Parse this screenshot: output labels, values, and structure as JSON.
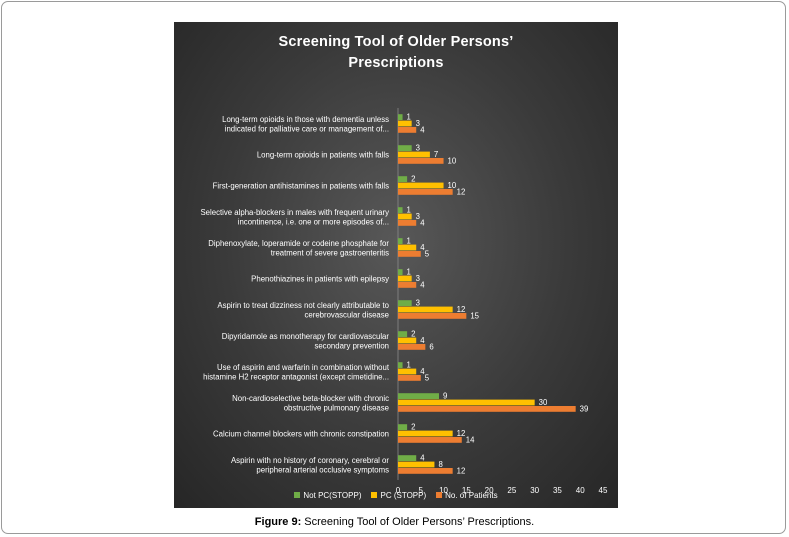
{
  "caption": {
    "label": "Figure 9:",
    "text": " Screening Tool of Older Persons’ Prescriptions."
  },
  "colors": {
    "not_pc": "#70ad47",
    "pc": "#ffc000",
    "patients": "#ed7d31",
    "background": "#3a3a3a"
  },
  "chart_data": {
    "type": "bar",
    "orientation": "horizontal",
    "title_lines": [
      "Screening Tool of Older Persons’",
      "Prescriptions"
    ],
    "categories": [
      [
        "Long-term opioids in those with dementia unless",
        "indicated for palliative care or management of..."
      ],
      [
        "Long-term opioids in patients with falls"
      ],
      [
        "First-generation antihistamines in patients with falls"
      ],
      [
        "Selective alpha-blockers in males with frequent urinary",
        "incontinence, i.e. one or more episodes of..."
      ],
      [
        "Diphenoxylate, loperamide or codeine phosphate for",
        "treatment of severe gastroenteritis"
      ],
      [
        "Phenothiazines in patients with epilepsy"
      ],
      [
        "Aspirin to treat dizziness not clearly attributable to",
        "cerebrovascular disease"
      ],
      [
        "Dipyridamole as monotherapy for cardiovascular",
        "secondary prevention"
      ],
      [
        "Use of aspirin and warfarin in combination without",
        "histamine H2 receptor antagonist (except cimetidine..."
      ],
      [
        "Non-cardioselective beta-blocker with chronic",
        "obstructive pulmonary disease"
      ],
      [
        "Calcium channel blockers with chronic constipation"
      ],
      [
        "Aspirin with no history of coronary, cerebral or",
        "peripheral arterial occlusive symptoms"
      ]
    ],
    "series": [
      {
        "name": "Not PC(STOPP)",
        "color": "#70ad47",
        "values": [
          1,
          3,
          2,
          1,
          1,
          1,
          3,
          2,
          1,
          9,
          2,
          4
        ]
      },
      {
        "name": "PC (STOPP)",
        "color": "#ffc000",
        "values": [
          3,
          7,
          10,
          3,
          4,
          3,
          12,
          4,
          4,
          30,
          12,
          8
        ]
      },
      {
        "name": "No. of Patients",
        "color": "#ed7d31",
        "values": [
          4,
          10,
          12,
          4,
          5,
          4,
          15,
          6,
          5,
          39,
          14,
          12
        ]
      }
    ],
    "xlim": [
      0,
      45
    ],
    "xticks": [
      0,
      5,
      10,
      15,
      20,
      25,
      30,
      35,
      40,
      45
    ],
    "grid": false,
    "legend_position": "bottom"
  }
}
